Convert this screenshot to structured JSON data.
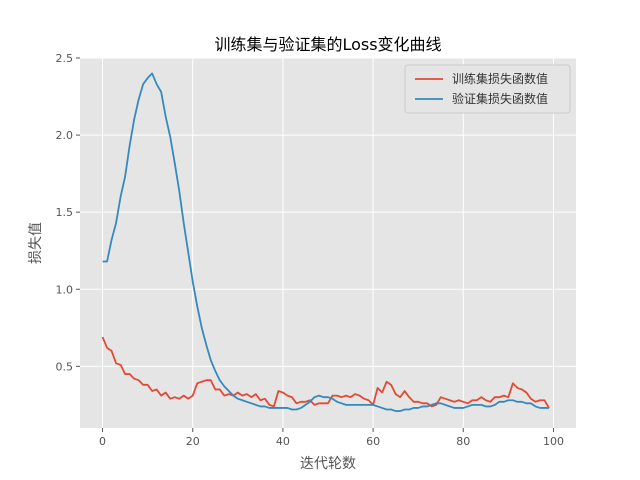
{
  "chart_data": {
    "type": "line",
    "title": "训练集与验证集的Loss变化曲线",
    "xlabel": "迭代轮数",
    "ylabel": "损失值",
    "xlim": [
      -5,
      105
    ],
    "ylim": [
      0.1,
      2.5
    ],
    "xticks": [
      0,
      20,
      40,
      60,
      80,
      100
    ],
    "yticks": [
      0.5,
      1.0,
      1.5,
      2.0,
      2.5
    ],
    "xtick_labels": [
      "0",
      "20",
      "40",
      "60",
      "80",
      "100"
    ],
    "ytick_labels": [
      "0.5",
      "1.0",
      "1.5",
      "2.0",
      "2.5"
    ],
    "grid": true,
    "style": "ggplot",
    "legend_position": "top-right",
    "series": [
      {
        "name": "训练集损失函数值",
        "color": "#E24A33",
        "x": [
          0,
          1,
          2,
          3,
          4,
          5,
          6,
          7,
          8,
          9,
          10,
          11,
          12,
          13,
          14,
          15,
          16,
          17,
          18,
          19,
          20,
          21,
          22,
          23,
          24,
          25,
          26,
          27,
          28,
          29,
          30,
          31,
          32,
          33,
          34,
          35,
          36,
          37,
          38,
          39,
          40,
          41,
          42,
          43,
          44,
          45,
          46,
          47,
          48,
          49,
          50,
          51,
          52,
          53,
          54,
          55,
          56,
          57,
          58,
          59,
          60,
          61,
          62,
          63,
          64,
          65,
          66,
          67,
          68,
          69,
          70,
          71,
          72,
          73,
          74,
          75,
          76,
          77,
          78,
          79,
          80,
          81,
          82,
          83,
          84,
          85,
          86,
          87,
          88,
          89,
          90,
          91,
          92,
          93,
          94,
          95,
          96,
          97,
          98,
          99
        ],
        "values": [
          0.69,
          0.62,
          0.6,
          0.52,
          0.51,
          0.45,
          0.45,
          0.42,
          0.41,
          0.38,
          0.38,
          0.34,
          0.35,
          0.31,
          0.33,
          0.29,
          0.3,
          0.29,
          0.31,
          0.29,
          0.31,
          0.39,
          0.4,
          0.41,
          0.41,
          0.35,
          0.35,
          0.31,
          0.32,
          0.31,
          0.33,
          0.31,
          0.32,
          0.3,
          0.32,
          0.28,
          0.29,
          0.25,
          0.24,
          0.34,
          0.33,
          0.31,
          0.3,
          0.26,
          0.27,
          0.27,
          0.28,
          0.25,
          0.26,
          0.26,
          0.26,
          0.31,
          0.31,
          0.3,
          0.31,
          0.3,
          0.32,
          0.31,
          0.29,
          0.28,
          0.25,
          0.36,
          0.33,
          0.4,
          0.38,
          0.32,
          0.3,
          0.34,
          0.3,
          0.27,
          0.27,
          0.26,
          0.26,
          0.24,
          0.25,
          0.3,
          0.29,
          0.28,
          0.27,
          0.28,
          0.27,
          0.26,
          0.28,
          0.28,
          0.3,
          0.28,
          0.27,
          0.3,
          0.3,
          0.31,
          0.3,
          0.39,
          0.36,
          0.35,
          0.33,
          0.29,
          0.27,
          0.28,
          0.28,
          0.23
        ]
      },
      {
        "name": "验证集损失函数值",
        "color": "#348ABD",
        "x": [
          0,
          1,
          2,
          3,
          4,
          5,
          6,
          7,
          8,
          9,
          10,
          11,
          12,
          13,
          14,
          15,
          16,
          17,
          18,
          19,
          20,
          21,
          22,
          23,
          24,
          25,
          26,
          27,
          28,
          29,
          30,
          31,
          32,
          33,
          34,
          35,
          36,
          37,
          38,
          39,
          40,
          41,
          42,
          43,
          44,
          45,
          46,
          47,
          48,
          49,
          50,
          51,
          52,
          53,
          54,
          55,
          56,
          57,
          58,
          59,
          60,
          61,
          62,
          63,
          64,
          65,
          66,
          67,
          68,
          69,
          70,
          71,
          72,
          73,
          74,
          75,
          76,
          77,
          78,
          79,
          80,
          81,
          82,
          83,
          84,
          85,
          86,
          87,
          88,
          89,
          90,
          91,
          92,
          93,
          94,
          95,
          96,
          97,
          98,
          99
        ],
        "values": [
          1.18,
          1.18,
          1.32,
          1.43,
          1.6,
          1.73,
          1.93,
          2.1,
          2.23,
          2.33,
          2.37,
          2.4,
          2.33,
          2.28,
          2.12,
          1.99,
          1.82,
          1.64,
          1.43,
          1.24,
          1.05,
          0.89,
          0.75,
          0.64,
          0.54,
          0.47,
          0.41,
          0.37,
          0.34,
          0.31,
          0.29,
          0.28,
          0.27,
          0.26,
          0.25,
          0.24,
          0.24,
          0.23,
          0.23,
          0.23,
          0.23,
          0.23,
          0.22,
          0.22,
          0.23,
          0.25,
          0.27,
          0.3,
          0.31,
          0.3,
          0.3,
          0.29,
          0.27,
          0.26,
          0.25,
          0.25,
          0.25,
          0.25,
          0.25,
          0.25,
          0.25,
          0.24,
          0.23,
          0.22,
          0.22,
          0.21,
          0.21,
          0.22,
          0.22,
          0.23,
          0.23,
          0.24,
          0.24,
          0.25,
          0.26,
          0.26,
          0.25,
          0.24,
          0.23,
          0.23,
          0.23,
          0.24,
          0.25,
          0.25,
          0.25,
          0.24,
          0.24,
          0.25,
          0.27,
          0.27,
          0.28,
          0.28,
          0.27,
          0.27,
          0.26,
          0.26,
          0.24,
          0.23,
          0.23,
          0.23
        ]
      }
    ]
  }
}
